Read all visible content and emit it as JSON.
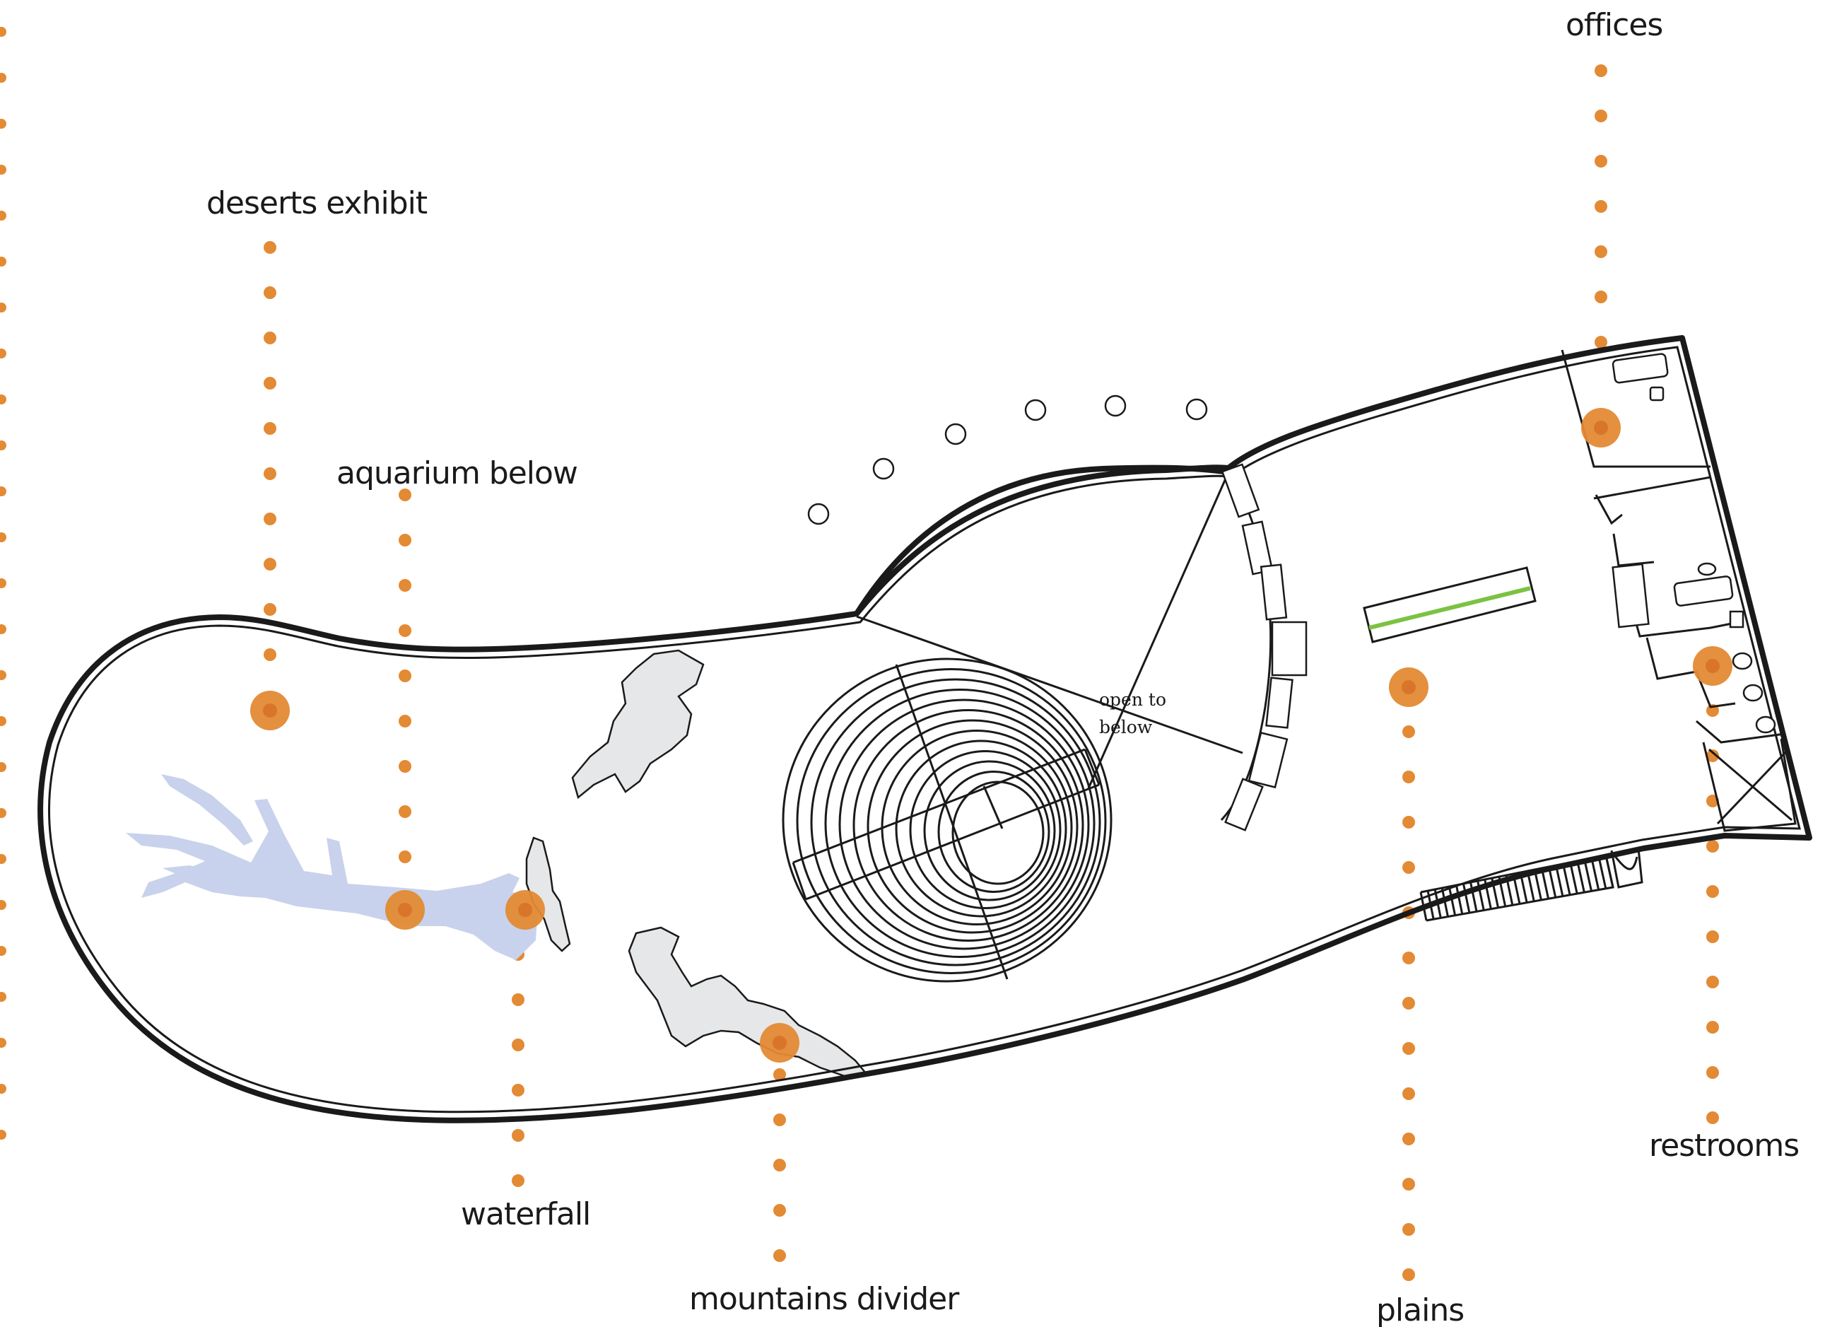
{
  "title": "",
  "labels": {
    "deserts": "deserts exhibit",
    "aquarium": "aquarium below",
    "waterfall": "waterfall",
    "mountains": "mountains divider",
    "plains": "plains",
    "offices": "offices",
    "restrooms": "restrooms",
    "open_line1": "open to",
    "open_line2": "below"
  },
  "colors": {
    "marker": "#e38a34",
    "water": "#c8d2ec",
    "rock": "#e6e7e8",
    "accent_bar": "#7cc242",
    "wall": "#1a1a1a"
  }
}
